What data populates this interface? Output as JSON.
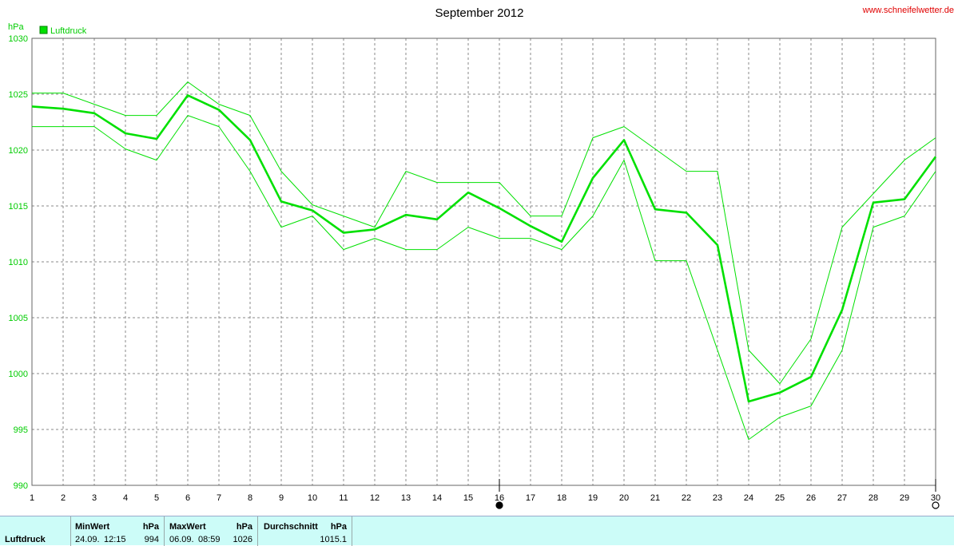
{
  "title": "September 2012",
  "site_link": "www.schneifelwetter.de",
  "unit": "hPa",
  "legend": {
    "label": "Luftdruck",
    "color": "#00e000"
  },
  "chart_data": {
    "type": "line",
    "title": "September 2012",
    "ylabel": "hPa",
    "ylim": [
      990,
      1030
    ],
    "xlim": [
      1,
      30
    ],
    "x": [
      1,
      2,
      3,
      4,
      5,
      6,
      7,
      8,
      9,
      10,
      11,
      12,
      13,
      14,
      15,
      16,
      17,
      18,
      19,
      20,
      21,
      22,
      23,
      24,
      25,
      26,
      27,
      28,
      29,
      30
    ],
    "y_ticks": [
      990,
      995,
      1000,
      1005,
      1010,
      1015,
      1020,
      1025,
      1030
    ],
    "x_ticks": [
      "1",
      "2",
      "3",
      "4",
      "5",
      "6",
      "7",
      "8",
      "9",
      "10",
      "11",
      "12",
      "13",
      "14",
      "15",
      "16",
      "17",
      "18",
      "19",
      "20",
      "21",
      "22",
      "23",
      "24",
      "25",
      "26",
      "27",
      "28",
      "29",
      "30"
    ],
    "grid": true,
    "legend_position": "top-left",
    "series": [
      {
        "name": "Luftdruck",
        "values": [
          1023.9,
          1023.7,
          1023.3,
          1021.5,
          1021.0,
          1024.9,
          1023.6,
          1020.9,
          1015.4,
          1014.6,
          1012.6,
          1012.9,
          1014.2,
          1013.8,
          1016.2,
          1014.8,
          1013.2,
          1011.8,
          1017.5,
          1020.9,
          1014.7,
          1014.4,
          1011.5,
          997.5,
          998.3,
          999.7,
          1005.7,
          1015.3,
          1015.6,
          1019.4
        ]
      },
      {
        "values": [
          1025.1,
          1025.1,
          1024.1,
          1023.1,
          1023.1,
          1026.1,
          1024.1,
          1023.1,
          1018.1,
          1015.1,
          1014.1,
          1013.1,
          1018.1,
          1017.1,
          1017.1,
          1017.1,
          1014.1,
          1014.1,
          1021.1,
          1022.1,
          1020.1,
          1018.1,
          1018.1,
          1002.1,
          999.1,
          1003.1,
          1013.1,
          1016.1,
          1019.1,
          1021.1
        ]
      },
      {
        "values": [
          1022.1,
          1022.1,
          1022.1,
          1020.1,
          1019.1,
          1023.1,
          1022.1,
          1018.1,
          1013.1,
          1014.1,
          1011.1,
          1012.1,
          1011.1,
          1011.1,
          1013.1,
          1012.1,
          1012.1,
          1011.1,
          1014.1,
          1019.1,
          1010.1,
          1010.1,
          1002.1,
          994.1,
          996.1,
          997.1,
          1002.1,
          1013.1,
          1014.1,
          1018.1
        ]
      }
    ],
    "markers": [
      {
        "day": 16,
        "symbol": "filled-circle"
      },
      {
        "day": 30,
        "symbol": "open-circle"
      }
    ]
  },
  "footer": {
    "row_label": "Luftdruck",
    "min": {
      "header": "MinWert",
      "unit": "hPa",
      "date": "24.09.",
      "time": "12:15",
      "value": "994"
    },
    "max": {
      "header": "MaxWert",
      "unit": "hPa",
      "date": "06.09.",
      "time": "08:59",
      "value": "1026"
    },
    "avg": {
      "header": "Durchschnitt",
      "unit": "hPa",
      "value": "1015.1"
    }
  }
}
